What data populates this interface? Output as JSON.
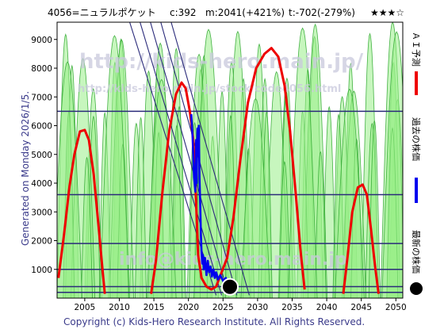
{
  "header": {
    "code_name": "4056=ニュラルポケット",
    "current": "c:392",
    "max_info": "m:2041(+421%)",
    "trend_info": "t:-702(-279%)",
    "stars": "★★★☆"
  },
  "side_label": "Generated on Monday 2026/1/5.",
  "legend": {
    "forecast": "ＡＩ予測",
    "past": "過去の株価",
    "latest": "最新の株価"
  },
  "watermark": {
    "line1": "http://kids-hero.main.jp/",
    "line2": "http://kids-hero.main.jp/stock/code4056.html",
    "line3": "info@kids-hero.main.jp"
  },
  "footer": "Copyright (c) Kids-Hero Research Institute. All Rights Reserved.",
  "colors": {
    "forecast": "#ee0000",
    "past": "#0000ee",
    "bands": "#2a2a7a",
    "grid": "#333366",
    "green_fill": "#99ee88",
    "yellow_fill": "#ffffaa",
    "green_line": "#33aa33"
  },
  "chart_data": {
    "type": "line",
    "xlim": [
      2001,
      2051
    ],
    "ylim": [
      0,
      9600
    ],
    "x_ticks": [
      2005,
      2010,
      2015,
      2020,
      2025,
      2030,
      2035,
      2040,
      2045,
      2050
    ],
    "y_ticks": [
      1000,
      2000,
      3000,
      4000,
      5000,
      6000,
      7000,
      8000,
      9000
    ],
    "horizontal_levels": [
      6500,
      3600,
      1900,
      1000,
      400,
      200
    ],
    "trend_lines": [
      {
        "from": [
          2011.5,
          9600
        ],
        "to": [
          2024.0,
          100
        ]
      },
      {
        "from": [
          2013.0,
          9600
        ],
        "to": [
          2024.8,
          100
        ]
      },
      {
        "from": [
          2014.5,
          9600
        ],
        "to": [
          2025.8,
          100
        ]
      },
      {
        "from": [
          2016.0,
          9600
        ],
        "to": [
          2027.0,
          100
        ]
      },
      {
        "from": [
          2017.5,
          9600
        ],
        "to": [
          2028.8,
          100
        ]
      }
    ],
    "latest_point": {
      "x": 2026.0,
      "y": 392
    },
    "series": [
      {
        "key": "forecast",
        "points": [
          [
            2001.2,
            700
          ],
          [
            2002.0,
            2200
          ],
          [
            2002.8,
            3900
          ],
          [
            2003.5,
            5000
          ],
          [
            2004.3,
            5800
          ],
          [
            2005.0,
            5850
          ],
          [
            2005.6,
            5500
          ],
          [
            2006.3,
            4300
          ],
          [
            2007.0,
            2500
          ],
          [
            2007.6,
            900
          ],
          [
            2007.9,
            150
          ],
          [
            2014.6,
            150
          ],
          [
            2015.3,
            1300
          ],
          [
            2016.2,
            3600
          ],
          [
            2017.2,
            5800
          ],
          [
            2018.2,
            7100
          ],
          [
            2019.0,
            7500
          ],
          [
            2019.6,
            7300
          ],
          [
            2020.2,
            6500
          ],
          [
            2020.7,
            5500
          ],
          [
            2021.0,
            4000
          ],
          [
            2021.4,
            1500
          ],
          [
            2021.9,
            700
          ],
          [
            2022.6,
            400
          ],
          [
            2023.3,
            300
          ],
          [
            2024.0,
            400
          ],
          [
            2024.8,
            900
          ],
          [
            2025.6,
            1400
          ],
          [
            2026.5,
            2800
          ],
          [
            2027.5,
            4800
          ],
          [
            2028.6,
            6800
          ],
          [
            2029.8,
            8000
          ],
          [
            2031.0,
            8500
          ],
          [
            2032.0,
            8700
          ],
          [
            2033.0,
            8400
          ],
          [
            2033.9,
            7400
          ],
          [
            2034.7,
            5800
          ],
          [
            2035.5,
            3700
          ],
          [
            2036.2,
            1700
          ],
          [
            2036.8,
            300
          ],
          [
            2042.4,
            150
          ],
          [
            2043.0,
            1400
          ],
          [
            2043.7,
            3000
          ],
          [
            2044.5,
            3850
          ],
          [
            2045.2,
            3950
          ],
          [
            2045.8,
            3600
          ],
          [
            2046.4,
            2400
          ],
          [
            2047.0,
            1100
          ],
          [
            2047.5,
            150
          ]
        ]
      },
      {
        "key": "past",
        "points": [
          [
            2020.4,
            6400
          ],
          [
            2020.6,
            5600
          ],
          [
            2020.8,
            4200
          ],
          [
            2021.0,
            3700
          ],
          [
            2021.1,
            5500
          ],
          [
            2021.2,
            4000
          ],
          [
            2021.3,
            5900
          ],
          [
            2021.4,
            5000
          ],
          [
            2021.5,
            6000
          ],
          [
            2021.6,
            4200
          ],
          [
            2021.7,
            3300
          ],
          [
            2021.8,
            2200
          ],
          [
            2021.9,
            1600
          ],
          [
            2022.0,
            1200
          ],
          [
            2022.1,
            1500
          ],
          [
            2022.2,
            1000
          ],
          [
            2022.4,
            1400
          ],
          [
            2022.6,
            800
          ],
          [
            2022.8,
            1300
          ],
          [
            2023.0,
            900
          ],
          [
            2023.2,
            1100
          ],
          [
            2023.4,
            750
          ],
          [
            2023.6,
            1000
          ],
          [
            2023.8,
            700
          ],
          [
            2024.0,
            900
          ],
          [
            2024.3,
            650
          ],
          [
            2024.6,
            800
          ],
          [
            2025.0,
            600
          ],
          [
            2025.4,
            700
          ],
          [
            2025.8,
            450
          ],
          [
            2026.0,
            392
          ]
        ]
      }
    ],
    "green_waves": [
      {
        "start": 2001.0,
        "period": 4.0,
        "amp": 9200
      },
      {
        "start": 2002.2,
        "period": 3.1,
        "amp": 8200
      },
      {
        "start": 2003.0,
        "period": 5.6,
        "amp": 9600
      },
      {
        "start": 2004.5,
        "period": 2.6,
        "amp": 6500
      },
      {
        "start": 2000.4,
        "period": 6.8,
        "amp": 9400
      }
    ]
  }
}
